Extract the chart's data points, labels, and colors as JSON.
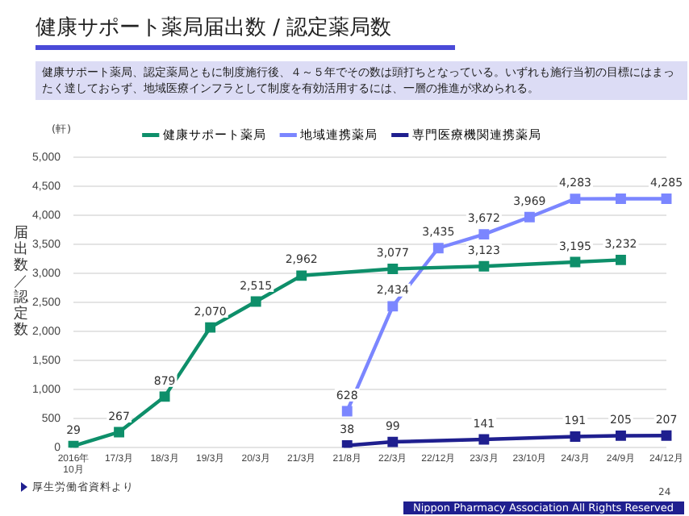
{
  "chart_data": {
    "type": "line",
    "title": "健康サポート薬局届出数 / 認定薬局数",
    "subtitle": "健康サポート薬局、認定薬局ともに制度施行後、４～５年でその数は頭打ちとなっている。いずれも施行当初の目標にはまったく達しておらず、地域医療インフラとして制度を有効活用するには、一層の推進が求められる。",
    "ylabel": "届出数／認定数",
    "annotations": [
      "(軒)",
      "厚生労働省資料より",
      "Nippon Pharmacy Association All Rights Reserved",
      "24"
    ],
    "categories": [
      "2016年10月",
      "17/3月",
      "18/3月",
      "19/3月",
      "20/3月",
      "21/3月",
      "21/8月",
      "22/3月",
      "22/12月",
      "23/3月",
      "23/10月",
      "24/3月",
      "24/9月",
      "24/12月"
    ],
    "series": [
      {
        "name": "健康サポート薬局",
        "color": "#0e8f6a",
        "values": [
          29,
          267,
          879,
          2070,
          2515,
          2962,
          null,
          3077,
          null,
          3123,
          null,
          3195,
          3232,
          null
        ],
        "value_labels": [
          "29",
          "267",
          "879",
          "2,070",
          "2,515",
          "2,962",
          null,
          "3,077",
          null,
          "3,123",
          null,
          "3,195",
          "3,232",
          null
        ]
      },
      {
        "name": "地域連携薬局",
        "color": "#7b86ff",
        "values": [
          null,
          null,
          null,
          null,
          null,
          null,
          628,
          2434,
          3435,
          3672,
          3969,
          4283,
          4285,
          4285
        ],
        "value_labels": [
          null,
          null,
          null,
          null,
          null,
          null,
          "628",
          "2,434",
          "3,435",
          "3,672",
          "3,969",
          "4,283",
          null,
          "4,285"
        ]
      },
      {
        "name": "専門医療機関連携薬局",
        "color": "#1f1f8f",
        "values": [
          null,
          null,
          null,
          null,
          null,
          null,
          38,
          99,
          null,
          141,
          null,
          191,
          205,
          207
        ],
        "value_labels": [
          null,
          null,
          null,
          null,
          null,
          null,
          "38",
          "99",
          null,
          "141",
          null,
          "191",
          "205",
          "207"
        ]
      }
    ],
    "ylim": [
      0,
      5000
    ],
    "yticks": [
      {
        "value": 0,
        "label": "0"
      },
      {
        "value": 500,
        "label": "500"
      },
      {
        "value": 1000,
        "label": "1,000"
      },
      {
        "value": 1500,
        "label": "1,500"
      },
      {
        "value": 2000,
        "label": "2,000"
      },
      {
        "value": 2500,
        "label": "2,500"
      },
      {
        "value": 3000,
        "label": "3,000"
      },
      {
        "value": 3500,
        "label": "3,500"
      },
      {
        "value": 4000,
        "label": "4,000"
      },
      {
        "value": 4500,
        "label": "4,500"
      },
      {
        "value": 5000,
        "label": "5,000"
      }
    ],
    "grid": "y",
    "legend": "top",
    "marker": "square",
    "line_style": "solid"
  }
}
